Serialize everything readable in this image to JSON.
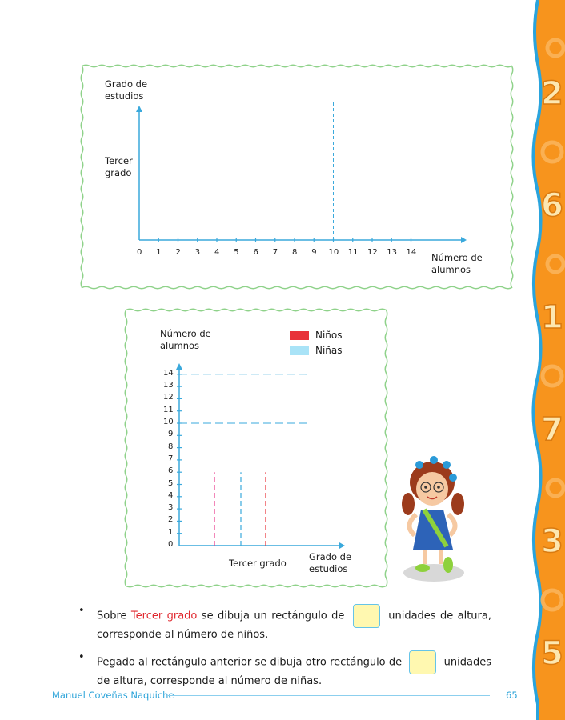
{
  "chart1": {
    "ylabel": "Grado de\nestudios",
    "category": "Tercer\ngrado",
    "xlabel": "Número de\nalumnos",
    "ticks": [
      "0",
      "1",
      "2",
      "3",
      "4",
      "5",
      "6",
      "7",
      "8",
      "9",
      "10",
      "11",
      "12",
      "13",
      "14"
    ],
    "guide_values": [
      10,
      14
    ]
  },
  "chart2": {
    "ylabel": "Número de\nalumnos",
    "xlabel": "Grado de\nestudios",
    "category": "Tercer grado",
    "ticks": [
      "0",
      "1",
      "2",
      "3",
      "4",
      "5",
      "6",
      "7",
      "8",
      "9",
      "10",
      "11",
      "12",
      "13",
      "14"
    ],
    "guide_values": [
      10,
      14
    ],
    "legend": [
      {
        "label": "Niños",
        "color": "#e8323a"
      },
      {
        "label": "Niñas",
        "color": "#a9e3f7"
      }
    ]
  },
  "bullets": [
    {
      "before": "Sobre ",
      "highlight": "Tercer grado",
      "middle": " se dibuja un rectángulo de ",
      "after": " unidades de altura, corresponde al número de niños."
    },
    {
      "before": "Pegado al rectángulo anterior se dibuja otro rectángulo de ",
      "after": " unidades de altura, corresponde al número de niñas."
    }
  ],
  "footer": {
    "author": "Manuel Coveñas Naquiche",
    "page": "65"
  },
  "colors": {
    "axis": "#3aa9dc",
    "frame": "#8fd28a",
    "accent_red": "#e0262d",
    "sidebar": "#f7941d"
  }
}
